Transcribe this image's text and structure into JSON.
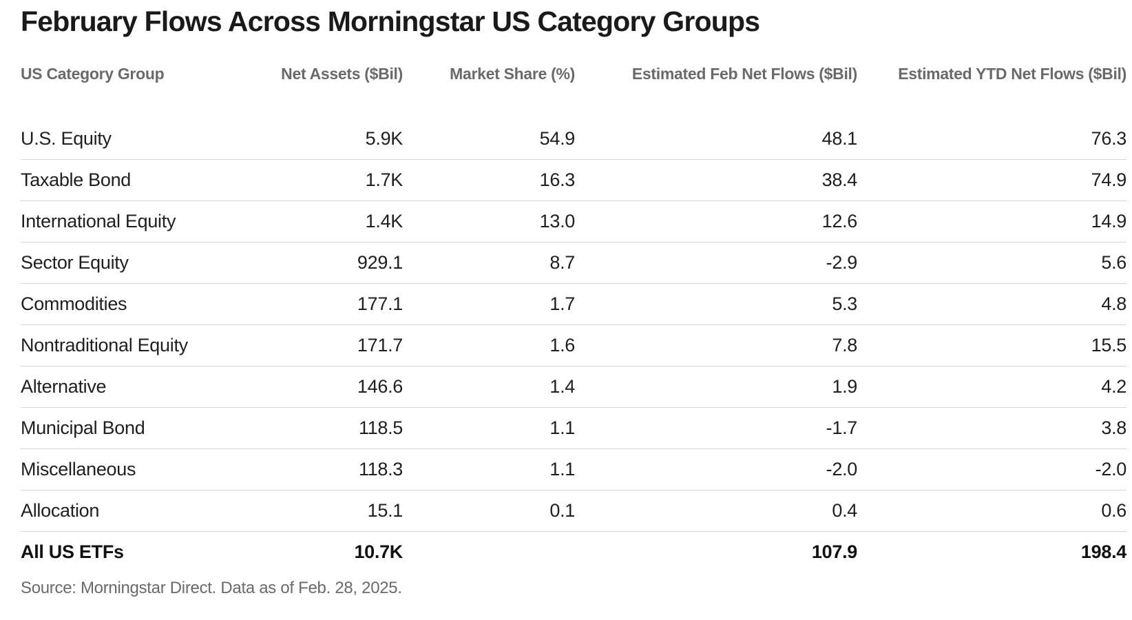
{
  "chart_data": {
    "type": "table",
    "title": "February Flows Across Morningstar US Category Groups",
    "columns": [
      "US Category Group",
      "Net Assets ($Bil)",
      "Market Share (%)",
      "Estimated Feb Net Flows ($Bil)",
      "Estimated YTD Net Flows ($Bil)"
    ],
    "rows": [
      [
        "U.S. Equity",
        "5.9K",
        "54.9",
        "48.1",
        "76.3"
      ],
      [
        "Taxable Bond",
        "1.7K",
        "16.3",
        "38.4",
        "74.9"
      ],
      [
        "International Equity",
        "1.4K",
        "13.0",
        "12.6",
        "14.9"
      ],
      [
        "Sector Equity",
        "929.1",
        "8.7",
        "-2.9",
        "5.6"
      ],
      [
        "Commodities",
        "177.1",
        "1.7",
        "5.3",
        "4.8"
      ],
      [
        "Nontraditional Equity",
        "171.7",
        "1.6",
        "7.8",
        "15.5"
      ],
      [
        "Alternative",
        "146.6",
        "1.4",
        "1.9",
        "4.2"
      ],
      [
        "Municipal Bond",
        "118.5",
        "1.1",
        "-1.7",
        "3.8"
      ],
      [
        "Miscellaneous",
        "118.3",
        "1.1",
        "-2.0",
        "-2.0"
      ],
      [
        "Allocation",
        "15.1",
        "0.1",
        "0.4",
        "0.6"
      ]
    ],
    "total": [
      "All US ETFs",
      "10.7K",
      "",
      "107.9",
      "198.4"
    ],
    "source": "Source: Morningstar Direct. Data as of Feb. 28, 2025."
  }
}
